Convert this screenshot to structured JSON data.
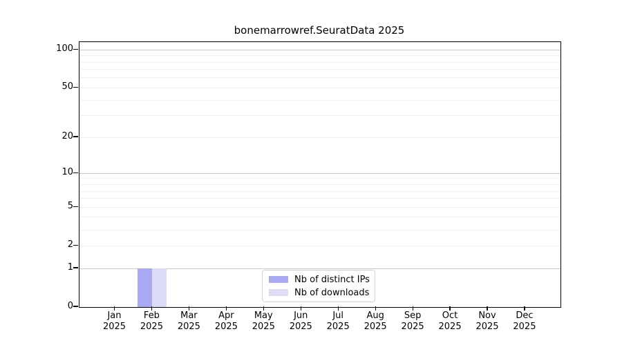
{
  "figure": {
    "background_color": "#ffffff",
    "axis_color": "#000000",
    "grid_major_color": "#c9c9c9",
    "grid_minor_color": "#efefef"
  },
  "chart_data": {
    "type": "bar",
    "title": "bonemarrowref.SeuratData 2025",
    "x_tick_months": [
      "Jan",
      "Feb",
      "Mar",
      "Apr",
      "May",
      "Jun",
      "Jul",
      "Aug",
      "Sep",
      "Oct",
      "Nov",
      "Dec"
    ],
    "x_tick_year": "2025",
    "categories": [
      "Jan 2025",
      "Feb 2025",
      "Mar 2025",
      "Apr 2025",
      "May 2025",
      "Jun 2025",
      "Jul 2025",
      "Aug 2025",
      "Sep 2025",
      "Oct 2025",
      "Nov 2025",
      "Dec 2025"
    ],
    "series": [
      {
        "name": "Nb of distinct IPs",
        "color": "#a9a9f4",
        "values": [
          0,
          1,
          0,
          0,
          0,
          0,
          0,
          0,
          0,
          0,
          0,
          0
        ]
      },
      {
        "name": "Nb of downloads",
        "color": "#dcdcf8",
        "values": [
          0,
          1,
          0,
          0,
          0,
          0,
          0,
          0,
          0,
          0,
          0,
          0
        ]
      }
    ],
    "yscale": "log1p",
    "ylabel": "",
    "xlabel": "",
    "y_ticks": [
      0,
      1,
      2,
      5,
      10,
      20,
      50,
      100
    ],
    "y_major_gridlines": [
      1,
      10,
      100
    ],
    "y_minor_gridlines": [
      2,
      3,
      4,
      5,
      6,
      7,
      8,
      9,
      20,
      30,
      40,
      50,
      60,
      70,
      80,
      90
    ],
    "ylim": [
      0,
      115
    ],
    "grid": true,
    "legend_position": "lower center"
  }
}
